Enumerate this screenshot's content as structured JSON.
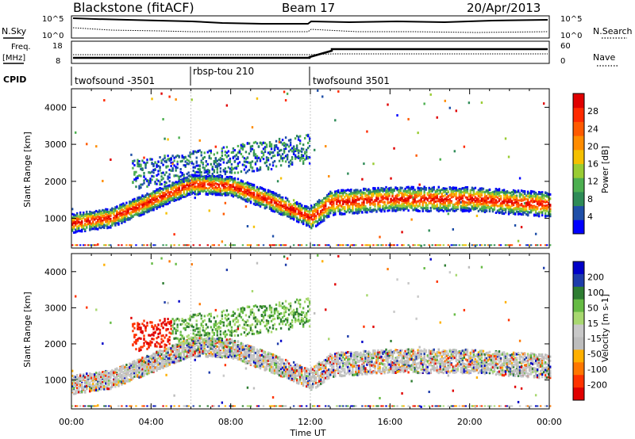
{
  "header": {
    "station": "Blackstone (fitACF)",
    "beam": "Beam 17",
    "date": "20/Apr/2013"
  },
  "top_panels": {
    "nsky_label": "N.Sky",
    "nsearch_label": "N.Search",
    "noise_ticks_left": [
      "10^5",
      "10^0"
    ],
    "noise_ticks_right": [
      "10^5",
      "10^0"
    ],
    "freq_label_1": "Freq.",
    "freq_label_2": "[MHz]",
    "freq_ticks": [
      "18",
      "8"
    ],
    "nave_label": "Nave",
    "nave_ticks": [
      "60",
      "0"
    ],
    "cpid_label": "CPID"
  },
  "cpid_segments": [
    {
      "name": "twofsound -3501",
      "start_hour": 0,
      "end_hour": 6
    },
    {
      "name": "rbsp-tou 210",
      "start_hour": 6,
      "end_hour": 12
    },
    {
      "name": "twofsound 3501",
      "start_hour": 12,
      "end_hour": 24
    }
  ],
  "colors": {
    "power_scale": [
      "#0000ff",
      "#1f4fa8",
      "#2e8b57",
      "#4caf50",
      "#99cc33",
      "#f5c000",
      "#ff8c00",
      "#ff5a00",
      "#ff2a00",
      "#e00000"
    ],
    "velocity_scale": [
      "#0000c8",
      "#1e3caa",
      "#2e7d32",
      "#66bb44",
      "#a8d870",
      "#c8c8c8",
      "#bdbdbd",
      "#ffb000",
      "#ff7700",
      "#ff3300",
      "#e00000"
    ]
  },
  "chart_data": [
    {
      "type": "heatmap",
      "name": "power",
      "ylabel": "Slant Range [km]",
      "xlabel": "Time UT",
      "x_ticks": [
        "00:00",
        "04:00",
        "08:00",
        "12:00",
        "16:00",
        "20:00",
        "00:00"
      ],
      "y_ticks": [
        "1000",
        "2000",
        "3000",
        "4000"
      ],
      "ylim": [
        200,
        4500
      ],
      "xlim_hours": [
        0,
        24
      ],
      "colorbar_label": "Power [dB]",
      "colorbar_ticks": [
        "4",
        "8",
        "12",
        "16",
        "20",
        "24",
        "28"
      ],
      "main_echo_band_km": [
        {
          "hour": 0,
          "km": 900
        },
        {
          "hour": 2,
          "km": 1050
        },
        {
          "hour": 4,
          "km": 1500
        },
        {
          "hour": 6,
          "km": 1950
        },
        {
          "hour": 8,
          "km": 1900
        },
        {
          "hour": 10,
          "km": 1500
        },
        {
          "hour": 12,
          "km": 1050
        },
        {
          "hour": 13,
          "km": 1450
        },
        {
          "hour": 16,
          "km": 1550
        },
        {
          "hour": 20,
          "km": 1550
        },
        {
          "hour": 24,
          "km": 1400
        }
      ]
    },
    {
      "type": "heatmap",
      "name": "velocity",
      "ylabel": "Slant Range [km]",
      "xlabel": "Time UT",
      "x_ticks": [
        "00:00",
        "04:00",
        "08:00",
        "12:00",
        "16:00",
        "20:00",
        "00:00"
      ],
      "y_ticks": [
        "1000",
        "2000",
        "3000",
        "4000"
      ],
      "ylim": [
        200,
        4500
      ],
      "xlim_hours": [
        0,
        24
      ],
      "colorbar_label": "Velocity [m s-1]",
      "colorbar_ticks": [
        "200",
        "100",
        "50",
        "15",
        "-15",
        "-50",
        "-100",
        "-200"
      ]
    }
  ]
}
